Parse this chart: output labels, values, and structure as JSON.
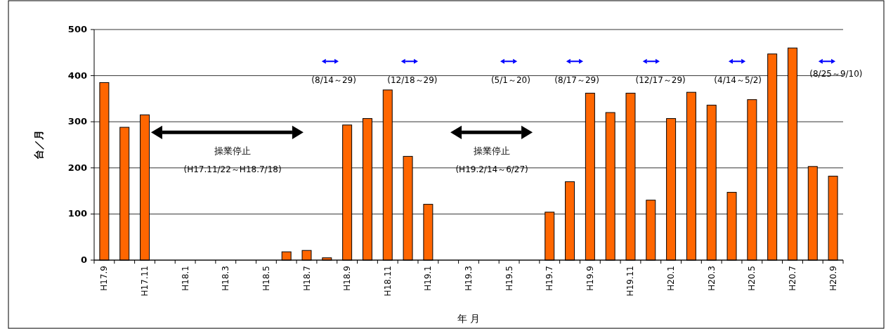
{
  "chart_data": {
    "type": "bar",
    "categories": [
      "H17.9",
      null,
      "H17.11",
      null,
      "H18.1",
      null,
      "H18.3",
      null,
      "H18.5",
      null,
      "H18.7",
      null,
      "H18.9",
      null,
      "H18.11",
      null,
      "H19.1",
      null,
      "H19.3",
      null,
      "H19.5",
      null,
      "H19.7",
      null,
      "H19.9",
      null,
      "H19.11",
      null,
      "H20.1",
      null,
      "H20.3",
      null,
      "H20.5",
      null,
      "H20.7",
      null,
      "H20.9"
    ],
    "values": [
      385,
      288,
      315,
      0,
      0,
      0,
      0,
      0,
      0,
      18,
      21,
      5,
      293,
      307,
      369,
      225,
      121,
      0,
      0,
      0,
      0,
      0,
      104,
      170,
      362,
      320,
      362,
      130,
      307,
      364,
      336,
      147,
      348,
      447,
      460,
      203,
      182
    ],
    "color": "#ff6600",
    "xlabel": "年 月",
    "ylabel": "台／月",
    "ylim": [
      0,
      500
    ],
    "yticks": [
      0,
      100,
      200,
      300,
      400,
      500
    ],
    "grid": "y",
    "annotations": [
      "操業停止",
      "(H17.11/22～H18.7/18)",
      "操業停止",
      "(H19.2/14～6/27)",
      "(8/14～29)",
      "(12/18～29)",
      "(5/1～20)",
      "(8/17～29)",
      "(12/17～29)",
      "(4/14～5/2)",
      "(8/25～9/10)"
    ]
  }
}
